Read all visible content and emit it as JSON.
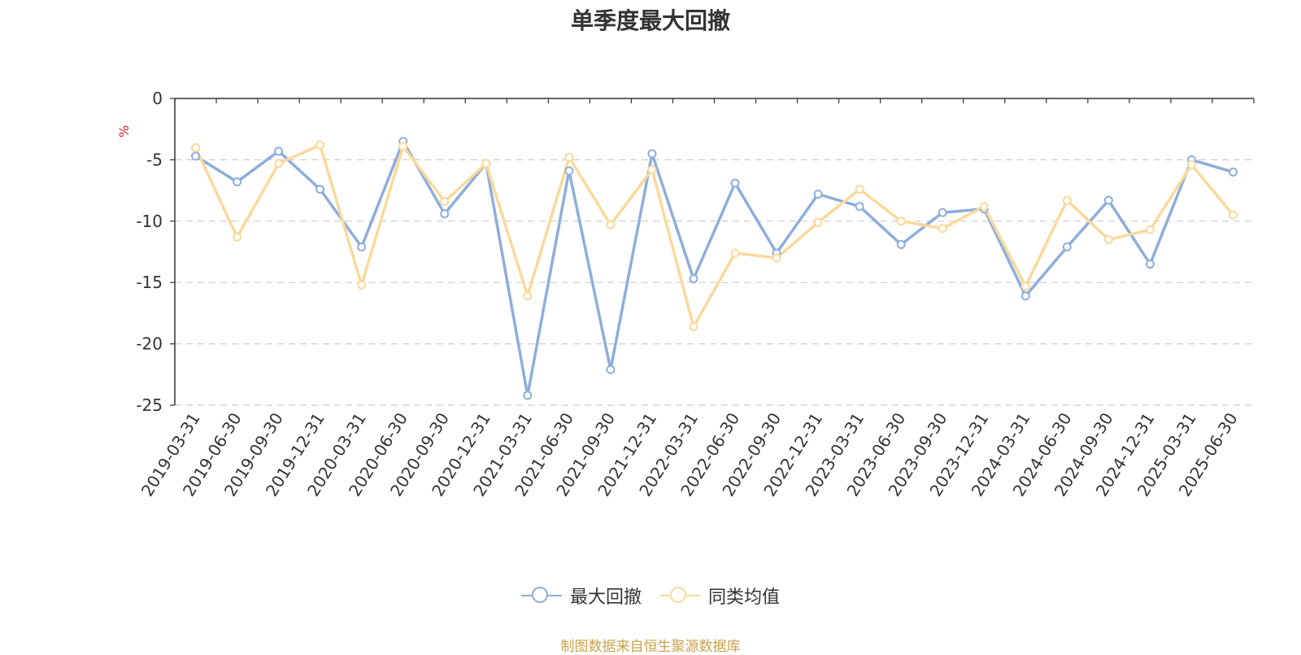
{
  "footer_text": "制图数据来自恒生聚源数据库",
  "chart_data": {
    "type": "line",
    "title": "单季度最大回撤",
    "ylabel": "%",
    "ylim": [
      -25,
      0
    ],
    "yticks": [
      0,
      -5,
      -10,
      -15,
      -20,
      -25
    ],
    "grid": true,
    "legend_position": "bottom-center",
    "categories": [
      "2019-03-31",
      "2019-06-30",
      "2019-09-30",
      "2019-12-31",
      "2020-03-31",
      "2020-06-30",
      "2020-09-30",
      "2020-12-31",
      "2021-03-31",
      "2021-06-30",
      "2021-09-30",
      "2021-12-31",
      "2022-03-31",
      "2022-06-30",
      "2022-09-30",
      "2022-12-31",
      "2023-03-31",
      "2023-06-30",
      "2023-09-30",
      "2023-12-31",
      "2024-03-31",
      "2024-06-30",
      "2024-09-30",
      "2024-12-31",
      "2025-03-31",
      "2025-06-30"
    ],
    "series": [
      {
        "name": "最大回撤",
        "color": "#8eaedb",
        "values": [
          -4.7,
          -6.8,
          -4.3,
          -7.4,
          -12.1,
          -3.5,
          -9.4,
          -5.3,
          -24.2,
          -5.9,
          -22.1,
          -4.5,
          -14.7,
          -6.9,
          -12.6,
          -7.8,
          -8.8,
          -11.9,
          -9.3,
          -9.0,
          -16.1,
          -12.1,
          -8.3,
          -13.5,
          -5.0,
          -6.0
        ]
      },
      {
        "name": "同类均值",
        "color": "#fad99a",
        "values": [
          -4.0,
          -11.3,
          -5.3,
          -3.8,
          -15.2,
          -3.9,
          -8.4,
          -5.3,
          -16.1,
          -4.8,
          -10.3,
          -5.8,
          -18.6,
          -12.6,
          -13.0,
          -10.1,
          -7.4,
          -10.0,
          -10.6,
          -8.8,
          -15.3,
          -8.3,
          -11.5,
          -10.7,
          -5.4,
          -9.5
        ]
      }
    ]
  }
}
